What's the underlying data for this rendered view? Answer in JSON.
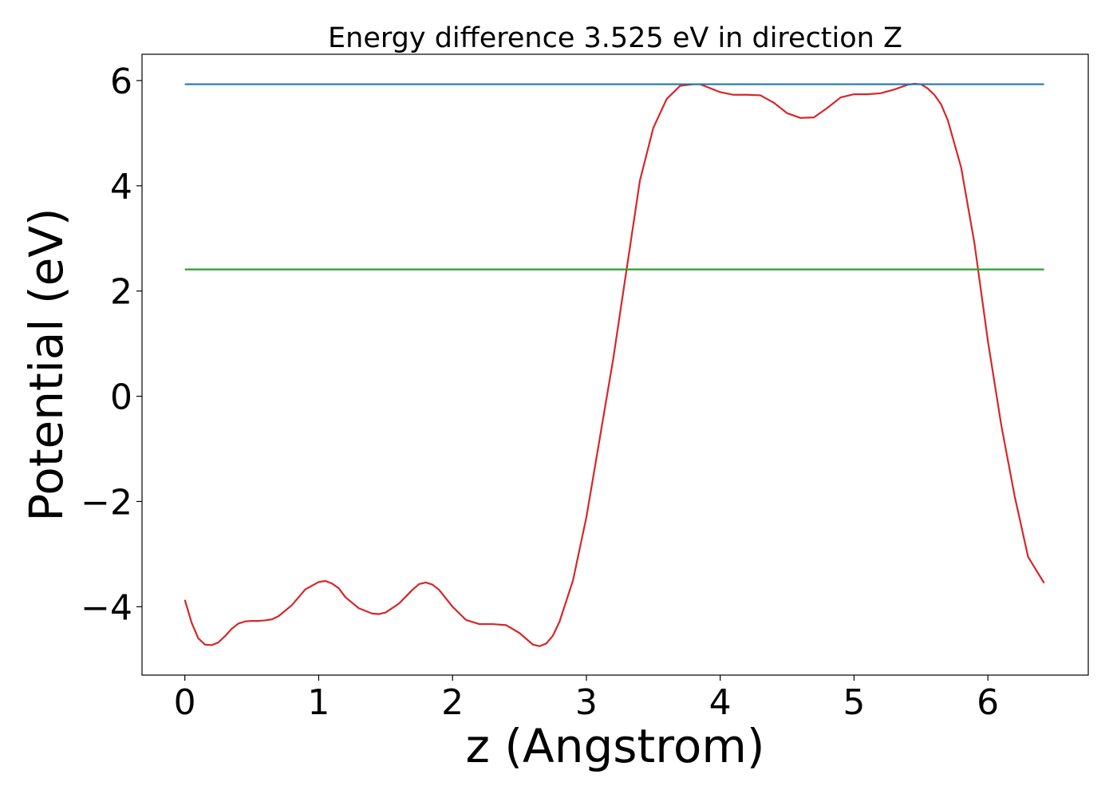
{
  "chart_data": {
    "type": "line",
    "title": "Energy difference 3.525 eV in direction Z",
    "xlabel": "z (Angstrom)",
    "ylabel": "Potential (eV)",
    "xlim": [
      -0.32,
      6.75
    ],
    "ylim": [
      -5.3,
      6.5
    ],
    "xticks": [
      0,
      1,
      2,
      3,
      4,
      5,
      6
    ],
    "yticks": [
      -4,
      -2,
      0,
      2,
      4,
      6
    ],
    "ytick_labels": [
      "−4",
      "−2",
      "0",
      "2",
      "4",
      "6"
    ],
    "grid": false,
    "series": [
      {
        "color": "#d62728",
        "x": [
          0.0,
          0.05,
          0.1,
          0.15,
          0.2,
          0.25,
          0.3,
          0.35,
          0.4,
          0.45,
          0.5,
          0.55,
          0.6,
          0.65,
          0.7,
          0.8,
          0.9,
          1.0,
          1.05,
          1.1,
          1.15,
          1.2,
          1.3,
          1.4,
          1.45,
          1.5,
          1.6,
          1.7,
          1.75,
          1.8,
          1.85,
          1.9,
          2.0,
          2.1,
          2.2,
          2.3,
          2.4,
          2.5,
          2.6,
          2.65,
          2.7,
          2.75,
          2.8,
          2.9,
          3.0,
          3.1,
          3.2,
          3.3,
          3.4,
          3.5,
          3.6,
          3.7,
          3.8,
          3.85,
          3.9,
          4.0,
          4.1,
          4.2,
          4.3,
          4.4,
          4.5,
          4.6,
          4.7,
          4.8,
          4.9,
          5.0,
          5.1,
          5.2,
          5.3,
          5.4,
          5.45,
          5.5,
          5.55,
          5.6,
          5.65,
          5.7,
          5.8,
          5.9,
          6.0,
          6.1,
          6.2,
          6.3,
          6.42
        ],
        "y": [
          -3.87,
          -4.3,
          -4.6,
          -4.72,
          -4.73,
          -4.68,
          -4.56,
          -4.42,
          -4.32,
          -4.28,
          -4.27,
          -4.27,
          -4.26,
          -4.24,
          -4.18,
          -3.97,
          -3.67,
          -3.53,
          -3.51,
          -3.56,
          -3.65,
          -3.82,
          -4.03,
          -4.13,
          -4.14,
          -4.11,
          -3.94,
          -3.68,
          -3.57,
          -3.54,
          -3.58,
          -3.68,
          -4.0,
          -4.25,
          -4.33,
          -4.33,
          -4.35,
          -4.5,
          -4.72,
          -4.75,
          -4.7,
          -4.55,
          -4.28,
          -3.5,
          -2.3,
          -0.8,
          0.7,
          2.4,
          4.1,
          5.1,
          5.65,
          5.9,
          5.93,
          5.93,
          5.88,
          5.78,
          5.73,
          5.73,
          5.72,
          5.58,
          5.38,
          5.29,
          5.3,
          5.48,
          5.68,
          5.74,
          5.74,
          5.76,
          5.83,
          5.92,
          5.94,
          5.93,
          5.85,
          5.73,
          5.55,
          5.25,
          4.35,
          2.9,
          1.05,
          -0.55,
          -1.9,
          -3.05,
          -3.55
        ]
      },
      {
        "color": "#1f77b4",
        "x": [
          0.0,
          6.42
        ],
        "y": [
          5.93,
          5.93
        ]
      },
      {
        "color": "#2ca02c",
        "x": [
          0.0,
          6.42
        ],
        "y": [
          2.41,
          2.41
        ]
      }
    ]
  }
}
